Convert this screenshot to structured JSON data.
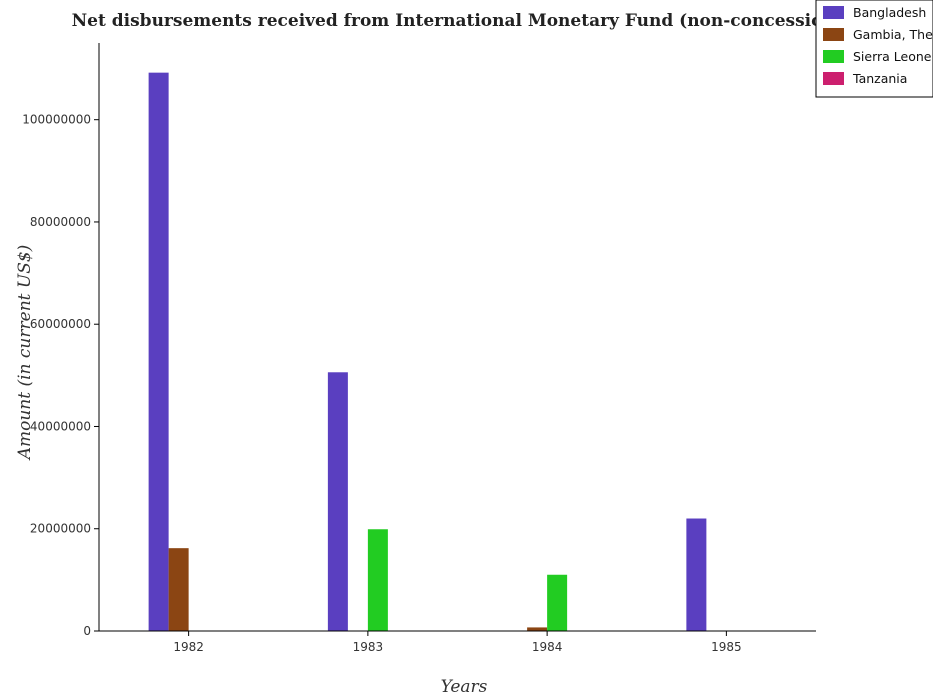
{
  "chart_data": {
    "type": "bar",
    "title": "Net disbursements received from International Monetary Fund (non-concessional)",
    "xlabel": "Years",
    "ylabel": "Amount (in current US$)",
    "categories": [
      "1982",
      "1983",
      "1984",
      "1985"
    ],
    "ylim": [
      0,
      115000000
    ],
    "yticks": [
      0,
      20000000,
      40000000,
      60000000,
      80000000,
      100000000
    ],
    "ytick_labels": [
      "0",
      "20000000",
      "40000000",
      "60000000",
      "80000000",
      "100000000"
    ],
    "grid": false,
    "legend_position": "top-right",
    "series": [
      {
        "name": "Bangladesh",
        "color": "#5a3fc0",
        "values": [
          109200000,
          50600000,
          0,
          22000000
        ]
      },
      {
        "name": "Gambia, The",
        "color": "#8b4513",
        "values": [
          16200000,
          0,
          700000,
          0
        ]
      },
      {
        "name": "Sierra Leone",
        "color": "#22cc22",
        "values": [
          0,
          19900000,
          11000000,
          0
        ]
      },
      {
        "name": "Tanzania",
        "color": "#cc1f6e",
        "values": [
          0,
          0,
          0,
          0
        ]
      }
    ]
  }
}
